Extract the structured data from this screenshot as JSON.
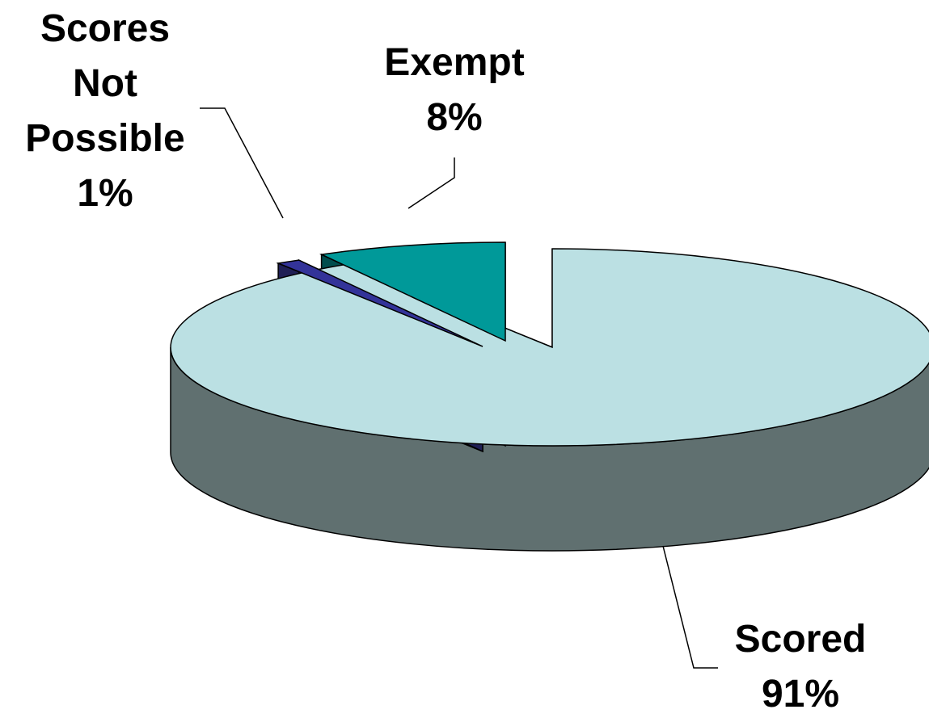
{
  "chart_data": {
    "type": "pie",
    "title": "",
    "style": "3d-exploded",
    "series": [
      {
        "name": "",
        "slices": [
          {
            "label": "Scored",
            "percent_label": "91%",
            "value": 91,
            "color": "#BBE0E3",
            "side_color": "#607070"
          },
          {
            "label": "Exempt",
            "percent_label": "8%",
            "value": 8,
            "color": "#009999",
            "side_color": "#004D4D"
          },
          {
            "label": "Scores Not Possible",
            "label_lines": [
              "Scores",
              "Not",
              "Possible"
            ],
            "percent_label": "1%",
            "value": 1,
            "color": "#333399",
            "side_color": "#1F1F55"
          }
        ]
      }
    ],
    "legend": "none",
    "data_labels": "category and percent, with leader lines"
  }
}
